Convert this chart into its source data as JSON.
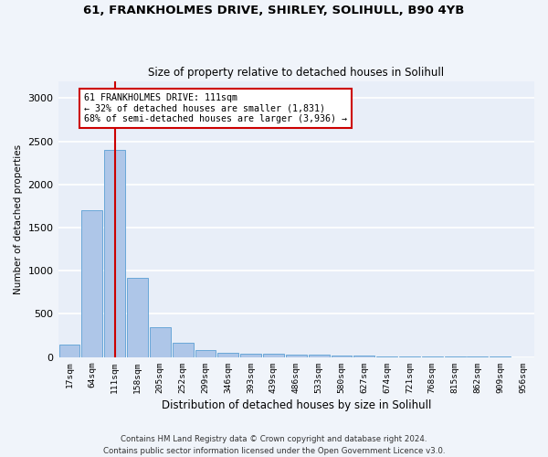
{
  "title1": "61, FRANKHOLMES DRIVE, SHIRLEY, SOLIHULL, B90 4YB",
  "title2": "Size of property relative to detached houses in Solihull",
  "xlabel": "Distribution of detached houses by size in Solihull",
  "ylabel": "Number of detached properties",
  "bin_labels": [
    "17sqm",
    "64sqm",
    "111sqm",
    "158sqm",
    "205sqm",
    "252sqm",
    "299sqm",
    "346sqm",
    "393sqm",
    "439sqm",
    "486sqm",
    "533sqm",
    "580sqm",
    "627sqm",
    "674sqm",
    "721sqm",
    "768sqm",
    "815sqm",
    "862sqm",
    "909sqm",
    "956sqm"
  ],
  "bar_heights": [
    140,
    1700,
    2400,
    920,
    350,
    165,
    85,
    50,
    40,
    35,
    25,
    25,
    20,
    15,
    10,
    8,
    5,
    5,
    3,
    3,
    2
  ],
  "bar_color": "#aec6e8",
  "bar_edge_color": "#5a9fd4",
  "highlight_index": 2,
  "red_line_color": "#cc0000",
  "annotation_line1": "61 FRANKHOLMES DRIVE: 111sqm",
  "annotation_line2": "← 32% of detached houses are smaller (1,831)",
  "annotation_line3": "68% of semi-detached houses are larger (3,936) →",
  "annotation_box_color": "#cc0000",
  "fig_bg_color": "#f0f4fa",
  "plot_bg_color": "#e8eef8",
  "grid_color": "#ffffff",
  "footer": "Contains HM Land Registry data © Crown copyright and database right 2024.\nContains public sector information licensed under the Open Government Licence v3.0.",
  "ylim": [
    0,
    3200
  ],
  "yticks": [
    0,
    500,
    1000,
    1500,
    2000,
    2500,
    3000
  ]
}
